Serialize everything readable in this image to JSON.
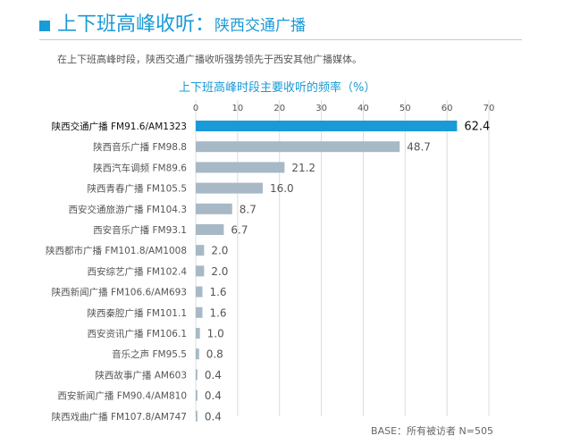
{
  "header": {
    "title_main": "上下班高峰收听",
    "separator": "：",
    "title_sub": "陕西交通广播"
  },
  "description": "在上下班高峰时段，陕西交通广播收听强势领先于西安其他广播媒体。",
  "footer": {
    "base": "BASE：所有被访者 N=505"
  },
  "colors": {
    "accent": "#1a9ad6",
    "bar_default": "#a7b9c6"
  },
  "chart_data": {
    "type": "bar",
    "orientation": "horizontal",
    "title": "上下班高峰时段主要收听的频率（%）",
    "categories": [
      "陕西交通广播 FM91.6/AM1323",
      "陕西音乐广播 FM98.8",
      "陕西汽车调频 FM89.6",
      "陕西青春广播 FM105.5",
      "西安交通旅游广播 FM104.3",
      "西安音乐广播 FM93.1",
      "陕西都市广播 FM101.8/AM1008",
      "西安综艺广播 FM102.4",
      "陕西新闻广播 FM106.6/AM693",
      "陕西秦腔广播 FM101.1",
      "西安资讯广播 FM106.1",
      "音乐之声 FM95.5",
      "陕西故事广播 AM603",
      "西安新闻广播 FM90.4/AM810",
      "陕西戏曲广播 FM107.8/AM747"
    ],
    "values": [
      62.4,
      48.7,
      21.2,
      16.0,
      8.7,
      6.7,
      2.0,
      2.0,
      1.6,
      1.6,
      1.0,
      0.8,
      0.4,
      0.4,
      0.4
    ],
    "value_labels": [
      "62.4",
      "48.7",
      "21.2",
      "16.0",
      "8.7",
      "6.7",
      "2.0",
      "2.0",
      "1.6",
      "1.6",
      "1.0",
      "0.8",
      "0.4",
      "0.4",
      "0.4"
    ],
    "highlight_index": 0,
    "xlim": [
      0,
      70
    ],
    "xticks": [
      "0",
      "10",
      "20",
      "30",
      "40",
      "50",
      "60",
      "70"
    ],
    "xaxis_position": "top",
    "grid": true
  }
}
